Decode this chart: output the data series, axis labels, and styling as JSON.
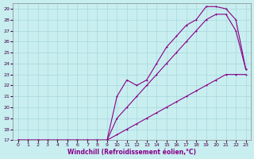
{
  "xlabel": "Windchill (Refroidissement éolien,°C)",
  "bg_color": "#c8eef0",
  "grid_color": "#a8d8dc",
  "line_color": "#880088",
  "xlim": [
    -0.5,
    23.5
  ],
  "ylim": [
    17,
    29.5
  ],
  "xticks": [
    0,
    1,
    2,
    3,
    4,
    5,
    6,
    7,
    8,
    9,
    10,
    11,
    12,
    13,
    14,
    15,
    16,
    17,
    18,
    19,
    20,
    21,
    22,
    23
  ],
  "yticks": [
    17,
    18,
    19,
    20,
    21,
    22,
    23,
    24,
    25,
    26,
    27,
    28,
    29
  ],
  "line1_x": [
    0,
    1,
    2,
    3,
    4,
    5,
    6,
    7,
    8,
    9,
    10,
    11,
    12,
    13,
    14,
    15,
    16,
    17,
    18,
    19,
    20,
    21,
    22,
    23
  ],
  "line1_y": [
    17,
    17,
    17,
    17,
    17,
    17,
    17,
    17,
    17,
    17,
    17.5,
    18,
    18.5,
    19,
    19.5,
    20,
    20.5,
    21,
    21.5,
    22,
    22.5,
    23,
    23,
    23
  ],
  "line2_x": [
    0,
    1,
    2,
    3,
    4,
    5,
    6,
    7,
    8,
    9,
    10,
    11,
    12,
    13,
    14,
    15,
    16,
    17,
    18,
    19,
    20,
    21,
    22,
    23
  ],
  "line2_y": [
    17,
    17,
    17,
    17,
    17,
    17,
    17,
    17,
    17,
    17,
    19,
    20,
    21,
    22,
    23,
    24,
    25,
    26,
    27,
    28,
    28.5,
    28.5,
    27,
    23.5
  ],
  "line3_x": [
    0,
    1,
    2,
    3,
    4,
    5,
    6,
    7,
    8,
    9,
    10,
    11,
    12,
    13,
    14,
    15,
    16,
    17,
    18,
    19,
    20,
    21,
    22,
    23
  ],
  "line3_y": [
    17,
    17,
    17,
    17,
    17,
    17,
    17,
    17,
    17,
    17,
    21,
    22.5,
    22,
    22.5,
    24,
    25.5,
    26.5,
    27.5,
    28,
    29.2,
    29.2,
    29,
    28,
    23.5
  ]
}
